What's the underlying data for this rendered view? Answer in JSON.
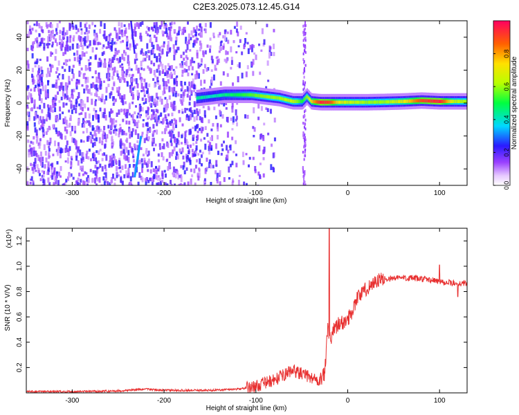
{
  "title": "C2E3.2025.073.12.45.G14",
  "chart_data": [
    {
      "type": "heatmap",
      "xlabel": "Height of straight line (km)",
      "ylabel": "Frequency (Hz)",
      "xlim": [
        -350,
        130
      ],
      "ylim": [
        -50,
        50
      ],
      "xticks": [
        -300,
        -200,
        -100,
        0,
        100
      ],
      "yticks": [
        -40,
        -20,
        0,
        20,
        40
      ],
      "colorbar": {
        "label": "Normalized spectral amplitude",
        "range": [
          0.0,
          1.0
        ],
        "ticks": [
          "0.0",
          "0.2",
          "0.4",
          "0.6",
          "0.8"
        ],
        "tick_values": [
          0.0,
          0.2,
          0.4,
          0.6,
          0.8
        ]
      },
      "ridge": {
        "x": [
          -165,
          -150,
          -135,
          -120,
          -105,
          -90,
          -75,
          -60,
          -50,
          -45,
          -40,
          -30,
          -20,
          -10,
          0,
          20,
          40,
          60,
          80,
          100,
          115,
          130
        ],
        "y": [
          3,
          4,
          5,
          5,
          5,
          4,
          3,
          1,
          1,
          4,
          1,
          0.5,
          0.5,
          0.5,
          0.5,
          0.5,
          0.7,
          1,
          1.5,
          1,
          1,
          1
        ],
        "amplitude": [
          0.45,
          0.4,
          0.45,
          0.5,
          0.55,
          0.6,
          0.6,
          0.65,
          0.5,
          0.6,
          0.75,
          0.95,
          0.9,
          0.7,
          0.65,
          0.6,
          0.6,
          0.7,
          0.9,
          0.95,
          0.65,
          0.6
        ]
      },
      "diagonal_streak": {
        "x": [
          -232,
          -225
        ],
        "y": [
          -45,
          -20
        ]
      },
      "noise_extent": [
        -350,
        -120
      ]
    },
    {
      "type": "line",
      "xlabel": "Height of straight line (km)",
      "ylabel": "SNR (10 * V/V)",
      "y_multiplier": "(x10⁴)",
      "xlim": [
        -350,
        130
      ],
      "ylim": [
        0,
        1.3
      ],
      "xticks": [
        -300,
        -200,
        -100,
        0,
        100
      ],
      "yticks": [
        0.2,
        0.4,
        0.6,
        0.8,
        1.0,
        1.2
      ],
      "ytick_labels": [
        "0.2",
        "0.4",
        "0.6",
        "0.8",
        "1.0",
        "1.2"
      ],
      "color": "#e83030",
      "series": [
        {
          "x": [
            -350,
            -300,
            -250,
            -220,
            -200,
            -180,
            -150,
            -120,
            -100,
            -90,
            -80,
            -70,
            -60,
            -50,
            -40,
            -30,
            -25,
            -22,
            -20,
            -18,
            -15,
            -10,
            -5,
            0,
            5,
            10,
            20,
            30,
            40,
            60,
            80,
            100,
            110,
            120,
            130
          ],
          "y": [
            0.01,
            0.01,
            0.015,
            0.03,
            0.02,
            0.02,
            0.02,
            0.03,
            0.05,
            0.08,
            0.1,
            0.14,
            0.18,
            0.15,
            0.12,
            0.1,
            0.15,
            0.5,
            0.45,
            0.42,
            0.5,
            0.55,
            0.55,
            0.58,
            0.65,
            0.75,
            0.82,
            0.88,
            0.9,
            0.91,
            0.9,
            0.88,
            0.87,
            0.86,
            0.87
          ]
        }
      ]
    }
  ]
}
